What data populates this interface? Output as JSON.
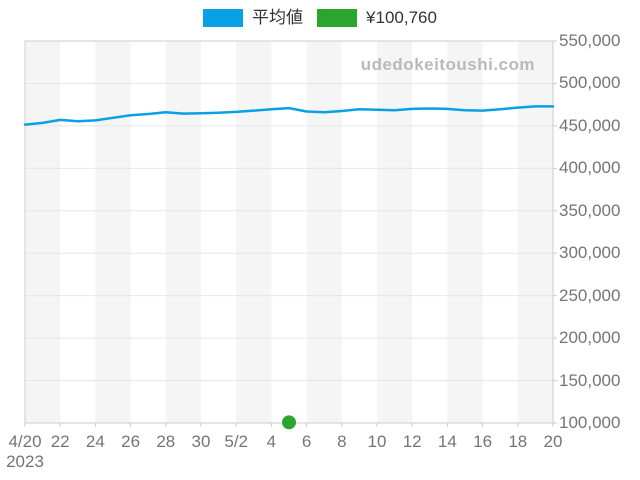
{
  "legend": {
    "items": [
      {
        "id": "average",
        "label": "平均値",
        "color": "#09A0E4"
      },
      {
        "id": "sale-price",
        "label": "¥100,760",
        "color": "#2BA52E"
      }
    ]
  },
  "watermark": {
    "text": "udedokeitoushi.com"
  },
  "colors": {
    "line": "#09A0E4",
    "marker": "#2BA52E",
    "stripe": "#f5f5f5",
    "grid": "#e6e6e6",
    "border": "#cccccc",
    "axis_text": "#757575",
    "watermark_text": "#b9b9b9",
    "background": "#ffffff"
  },
  "chart_data": {
    "type": "line",
    "title": "",
    "xlabel": "",
    "ylabel": "",
    "x": [
      "4/20",
      "4/21",
      "4/22",
      "4/23",
      "4/24",
      "4/25",
      "4/26",
      "4/27",
      "4/28",
      "4/29",
      "4/30",
      "5/1",
      "5/2",
      "5/3",
      "5/4",
      "5/5",
      "5/6",
      "5/7",
      "5/8",
      "5/9",
      "5/10",
      "5/11",
      "5/12",
      "5/13",
      "5/14",
      "5/15",
      "5/16",
      "5/17",
      "5/18",
      "5/19",
      "5/20"
    ],
    "series": [
      {
        "name": "平均値",
        "color": "#09A0E4",
        "values": [
          451500,
          453500,
          457000,
          455500,
          456500,
          459500,
          462500,
          464000,
          466000,
          464500,
          465000,
          465500,
          466500,
          468000,
          469500,
          471000,
          467000,
          466000,
          467500,
          469500,
          469000,
          468500,
          470000,
          470500,
          470000,
          468500,
          468000,
          469500,
          471500,
          473000,
          473000
        ]
      }
    ],
    "point_markers": [
      {
        "x": "5/5",
        "value": 100760,
        "label": "¥100,760",
        "color": "#2BA52E"
      }
    ],
    "x_tick_labels": [
      "4/20",
      "22",
      "24",
      "26",
      "28",
      "30",
      "5/2",
      "4",
      "6",
      "8",
      "10",
      "12",
      "14",
      "16",
      "18",
      "20"
    ],
    "x_tick_every_days": 2,
    "year_label": "2023",
    "y_tick_labels": [
      "100,000",
      "150,000",
      "200,000",
      "250,000",
      "300,000",
      "350,000",
      "400,000",
      "450,000",
      "500,000",
      "550,000"
    ],
    "ylim": [
      100000,
      550000
    ],
    "y_step": 50000,
    "grid": true,
    "background_stripes": true,
    "legend_position": "top"
  }
}
